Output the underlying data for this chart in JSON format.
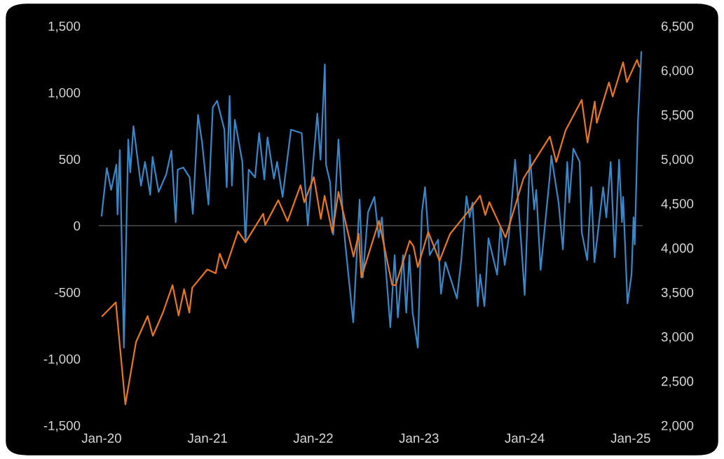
{
  "chart_data": {
    "type": "line",
    "xlim": [
      "2019-12-20",
      "2025-02-14"
    ],
    "xticks": [
      {
        "value": "2020-01-01",
        "label": "Jan-20"
      },
      {
        "value": "2021-01-01",
        "label": "Jan-21"
      },
      {
        "value": "2022-01-01",
        "label": "Jan-22"
      },
      {
        "value": "2023-01-01",
        "label": "Jan-23"
      },
      {
        "value": "2024-01-01",
        "label": "Jan-24"
      },
      {
        "value": "2025-01-01",
        "label": "Jan-25"
      }
    ],
    "ylim": [
      -1500,
      1500
    ],
    "yticks": [
      {
        "value": -1500,
        "label": "-1,500"
      },
      {
        "value": -1000,
        "label": "-1,000"
      },
      -500,
      0,
      500,
      {
        "value": 1000,
        "label": "1,000"
      },
      {
        "value": 1500,
        "label": "1,500"
      }
    ],
    "y2lim": [
      2000,
      6500
    ],
    "y2ticks": [
      {
        "value": 2000,
        "label": "2,000"
      },
      {
        "value": 2500,
        "label": "2,500"
      },
      {
        "value": 3000,
        "label": "3,000"
      },
      {
        "value": 3500,
        "label": "3,500"
      },
      {
        "value": 4000,
        "label": "4,000"
      },
      {
        "value": 4500,
        "label": "4,500"
      },
      {
        "value": 5000,
        "label": "5,000"
      },
      {
        "value": 5500,
        "label": "5,500"
      },
      {
        "value": 6000,
        "label": "6,000"
      },
      {
        "value": 6500,
        "label": "6,500"
      }
    ],
    "ref_lines": [
      {
        "axis": "y",
        "value": 0,
        "color": "#3a3a3a"
      }
    ],
    "grid": false,
    "legend": false,
    "series": [
      {
        "color": "#3a87c8",
        "x": [
          "2020-01-01",
          "2020-01-19",
          "2020-02-03",
          "2020-02-21",
          "2020-02-25",
          "2020-03-04",
          "2020-03-18",
          "2020-04-02",
          "2020-04-09",
          "2020-04-20",
          "2020-04-27",
          "2020-05-16",
          "2020-05-30",
          "2020-06-17",
          "2020-06-25",
          "2020-07-16",
          "2020-08-11",
          "2020-08-29",
          "2020-09-13",
          "2020-09-20",
          "2020-10-09",
          "2020-10-31",
          "2020-11-11",
          "2020-11-29",
          "2020-12-13",
          "2021-01-04",
          "2021-01-19",
          "2021-02-03",
          "2021-02-28",
          "2021-03-08",
          "2021-03-18",
          "2021-03-26",
          "2021-04-05",
          "2021-05-01",
          "2021-05-12",
          "2021-05-23",
          "2021-06-14",
          "2021-06-28",
          "2021-07-16",
          "2021-07-27",
          "2021-08-18",
          "2021-08-29",
          "2021-09-17",
          "2021-10-16",
          "2021-11-22",
          "2021-12-13",
          "2022-01-15",
          "2022-01-26",
          "2022-02-10",
          "2022-02-14",
          "2022-02-28",
          "2022-03-11",
          "2022-03-29",
          "2022-04-09",
          "2022-04-20",
          "2022-05-19",
          "2022-06-10",
          "2022-06-21",
          "2022-07-09",
          "2022-07-31",
          "2022-08-15",
          "2022-08-26",
          "2022-09-24",
          "2022-10-09",
          "2022-10-20",
          "2022-11-07",
          "2022-11-18",
          "2022-11-29",
          "2022-12-10",
          "2022-12-28",
          "2023-01-11",
          "2023-01-22",
          "2023-02-07",
          "2023-03-08",
          "2023-03-18",
          "2023-04-02",
          "2023-05-12",
          "2023-05-27",
          "2023-06-14",
          "2023-06-25",
          "2023-07-05",
          "2023-07-23",
          "2023-07-31",
          "2023-08-15",
          "2023-08-29",
          "2023-09-28",
          "2023-10-09",
          "2023-10-24",
          "2023-11-07",
          "2023-11-29",
          "2023-12-21",
          "2024-01-01",
          "2024-01-19",
          "2024-02-03",
          "2024-02-10",
          "2024-02-25",
          "2024-03-29",
          "2024-04-02",
          "2024-04-27",
          "2024-05-12",
          "2024-05-27",
          "2024-06-03",
          "2024-06-17",
          "2024-07-09",
          "2024-07-16",
          "2024-08-04",
          "2024-08-18",
          "2024-08-29",
          "2024-09-28",
          "2024-10-09",
          "2024-10-24",
          "2024-11-07",
          "2024-11-22",
          "2024-12-02",
          "2024-12-06",
          "2024-12-21",
          "2025-01-04",
          "2025-01-11",
          "2025-01-15",
          "2025-01-26",
          "2025-02-07"
        ],
        "values": [
          74,
          432,
          268,
          458,
          84,
          568,
          -916,
          647,
          400,
          747,
          626,
          300,
          479,
          232,
          516,
          253,
          384,
          563,
          26,
          421,
          437,
          363,
          89,
          832,
          626,
          158,
          889,
          937,
          721,
          289,
          974,
          300,
          795,
          479,
          -126,
          421,
          363,
          695,
          347,
          663,
          353,
          479,
          216,
          721,
          695,
          0,
          842,
          495,
          1211,
          458,
          326,
          -68,
          647,
          216,
          -105,
          -726,
          195,
          -389,
          100,
          216,
          -89,
          63,
          -763,
          -221,
          -689,
          -221,
          -653,
          -221,
          -653,
          -916,
          100,
          289,
          -221,
          -105,
          -511,
          -274,
          -547,
          -258,
          221,
          63,
          174,
          -605,
          -368,
          -605,
          -95,
          -368,
          -11,
          -295,
          -89,
          495,
          -163,
          -521,
          532,
          121,
          268,
          -332,
          400,
          526,
          174,
          -179,
          479,
          174,
          579,
          479,
          -47,
          -258,
          289,
          -274,
          289,
          63,
          479,
          -237,
          495,
          26,
          216,
          -584,
          -368,
          63,
          -142,
          779,
          1305
        ]
      },
      {
        "color": "#e87722",
        "axis": "y2",
        "x": [
          "2020-01-03",
          "2020-02-19",
          "2020-03-23",
          "2020-04-29",
          "2020-06-08",
          "2020-06-26",
          "2020-07-31",
          "2020-09-02",
          "2020-09-23",
          "2020-10-12",
          "2020-10-30",
          "2020-11-09",
          "2020-12-31",
          "2021-01-29",
          "2021-02-12",
          "2021-03-04",
          "2021-04-16",
          "2021-05-12",
          "2021-07-12",
          "2021-07-19",
          "2021-09-02",
          "2021-10-04",
          "2021-11-18",
          "2021-12-01",
          "2022-01-03",
          "2022-01-27",
          "2022-02-09",
          "2022-03-08",
          "2022-03-29",
          "2022-05-20",
          "2022-06-07",
          "2022-06-16",
          "2022-08-16",
          "2022-09-30",
          "2022-10-12",
          "2022-11-30",
          "2022-12-13",
          "2022-12-28",
          "2023-02-02",
          "2023-03-13",
          "2023-04-18",
          "2023-06-30",
          "2023-07-31",
          "2023-08-18",
          "2023-09-01",
          "2023-10-27",
          "2023-12-28",
          "2024-03-28",
          "2024-04-19",
          "2024-05-21",
          "2024-07-16",
          "2024-08-05",
          "2024-08-30",
          "2024-09-06",
          "2024-10-18",
          "2024-10-31",
          "2024-12-06",
          "2024-12-19",
          "2025-01-23",
          "2025-01-31"
        ],
        "values": [
          3230,
          3386,
          2237,
          2940,
          3232,
          3009,
          3271,
          3580,
          3237,
          3534,
          3270,
          3550,
          3756,
          3714,
          3934,
          3768,
          4185,
          4063,
          4384,
          4258,
          4537,
          4300,
          4705,
          4513,
          4797,
          4326,
          4587,
          4170,
          4631,
          3901,
          4160,
          3667,
          4305,
          3586,
          3577,
          4080,
          4019,
          3783,
          4179,
          3855,
          4155,
          4450,
          4589,
          4370,
          4515,
          4117,
          4783,
          5254,
          4967,
          5321,
          5667,
          5186,
          5648,
          5408,
          5864,
          5705,
          6090,
          5867,
          6118,
          6040
        ]
      }
    ]
  }
}
